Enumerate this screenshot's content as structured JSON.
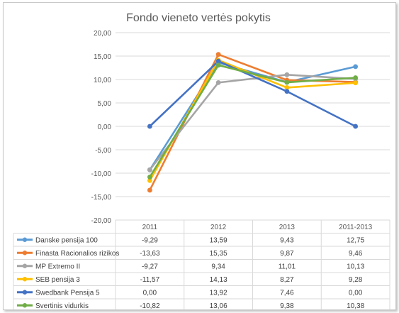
{
  "chart_data": {
    "type": "line",
    "title": "Fondo vieneto vertės pokytis",
    "categories": [
      "2011",
      "2012",
      "2013",
      "2011-2013"
    ],
    "ylim": [
      -20,
      20
    ],
    "y_ticks": [
      "20,00",
      "15,00",
      "10,00",
      "5,00",
      "0,00",
      "-5,00",
      "-10,00",
      "-15,00",
      "-20,00"
    ],
    "grid": true,
    "legend": "data-table",
    "series": [
      {
        "name": "Danske pensija 100",
        "color": "#5b9bd5",
        "values": [
          -9.29,
          13.59,
          9.43,
          12.75
        ],
        "labels": [
          "-9,29",
          "13,59",
          "9,43",
          "12,75"
        ]
      },
      {
        "name": "Finasta Racionalios rizikos",
        "color": "#ed7d31",
        "values": [
          -13.63,
          15.35,
          9.87,
          9.46
        ],
        "labels": [
          "-13,63",
          "15,35",
          "9,87",
          "9,46"
        ]
      },
      {
        "name": "MP Extremo II",
        "color": "#a5a5a5",
        "values": [
          -9.27,
          9.34,
          11.01,
          10.13
        ],
        "labels": [
          "-9,27",
          "9,34",
          "11,01",
          "10,13"
        ]
      },
      {
        "name": "SEB pensija 3",
        "color": "#ffc000",
        "values": [
          -11.57,
          14.13,
          8.27,
          9.28
        ],
        "labels": [
          "-11,57",
          "14,13",
          "8,27",
          "9,28"
        ]
      },
      {
        "name": "Swedbank Pensija 5",
        "color": "#4472c4",
        "values": [
          0.0,
          13.92,
          7.46,
          0.0
        ],
        "labels": [
          "0,00",
          "13,92",
          "7,46",
          "0,00"
        ]
      },
      {
        "name": "Svertinis vidurkis",
        "color": "#70ad47",
        "values": [
          -10.82,
          13.06,
          9.38,
          10.38
        ],
        "labels": [
          "-10,82",
          "13,06",
          "9,38",
          "10,38"
        ]
      }
    ]
  }
}
